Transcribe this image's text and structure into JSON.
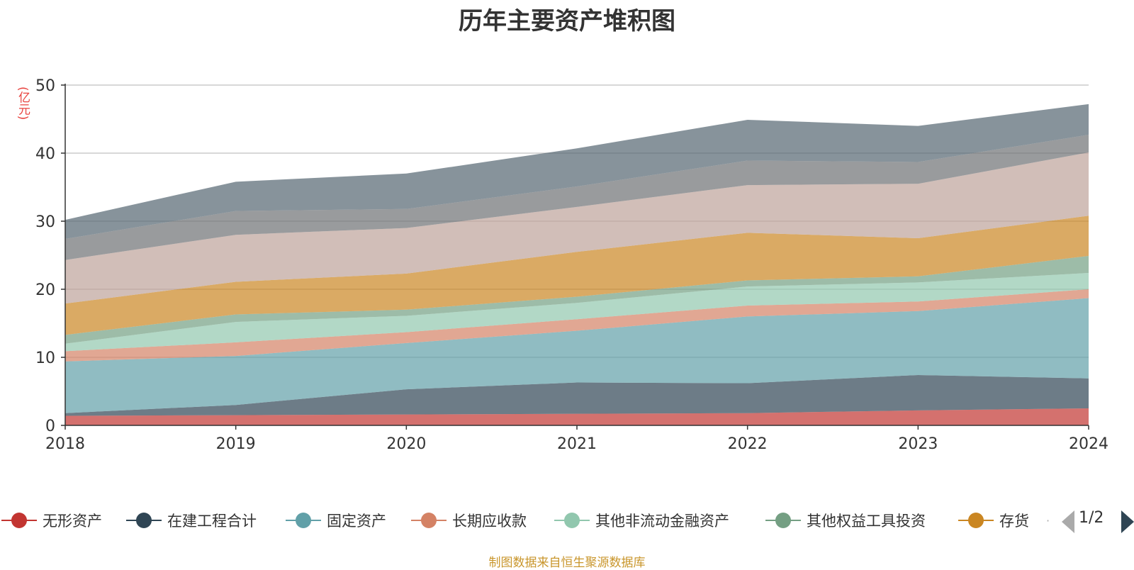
{
  "chart_data": {
    "type": "area",
    "title": "历年主要资产堆积图",
    "unit_label": "(亿元)",
    "x": [
      "2018",
      "2019",
      "2020",
      "2021",
      "2022",
      "2023",
      "2024"
    ],
    "ylim": [
      0,
      50
    ],
    "yticks": [
      0,
      10,
      20,
      30,
      40,
      50
    ],
    "stacked": true,
    "grid": true,
    "legend_position": "bottom",
    "series": [
      {
        "name": "无形资产",
        "color": "#c23531",
        "values": [
          1.4,
          1.5,
          1.6,
          1.7,
          1.8,
          2.2,
          2.5
        ]
      },
      {
        "name": "在建工程合计",
        "color": "#2f4554",
        "values": [
          0.4,
          1.5,
          3.7,
          4.6,
          4.4,
          5.2,
          4.4
        ]
      },
      {
        "name": "固定资产",
        "color": "#61a0a8",
        "values": [
          7.6,
          7.2,
          6.8,
          7.6,
          9.8,
          9.4,
          11.8
        ]
      },
      {
        "name": "长期应收款",
        "color": "#d48265",
        "values": [
          1.5,
          2.0,
          1.6,
          1.7,
          1.6,
          1.4,
          1.3
        ]
      },
      {
        "name": "其他非流动金融资产",
        "color": "#91c7ae",
        "values": [
          1.1,
          3.0,
          2.4,
          2.4,
          2.8,
          2.8,
          2.4
        ]
      },
      {
        "name": "其他权益工具投资",
        "color": "#749f83",
        "values": [
          1.3,
          1.1,
          0.9,
          0.9,
          0.9,
          0.9,
          2.5
        ]
      },
      {
        "name": "存货",
        "color": "#ca8622",
        "values": [
          4.6,
          4.8,
          5.3,
          6.6,
          7.0,
          5.6,
          5.9
        ]
      },
      {
        "name": "",
        "color": "#bda29a",
        "values": [
          6.4,
          6.9,
          6.7,
          6.6,
          7.0,
          8.0,
          9.3
        ]
      },
      {
        "name": "",
        "color": "#6e7074",
        "values": [
          3.1,
          3.5,
          2.8,
          3.0,
          3.6,
          3.2,
          2.6
        ]
      },
      {
        "name": "",
        "color": "#546570",
        "values": [
          2.8,
          4.3,
          5.2,
          5.6,
          6.0,
          5.3,
          4.5
        ]
      }
    ]
  },
  "legend": {
    "items": [
      "无形资产",
      "在建工程合计",
      "固定资产",
      "长期应收款",
      "其他非流动金融资产",
      "其他权益工具投资",
      "存货"
    ],
    "more": "·",
    "page_text": "1/2"
  },
  "footer": {
    "source_note": "制图数据来自恒生聚源数据库"
  }
}
